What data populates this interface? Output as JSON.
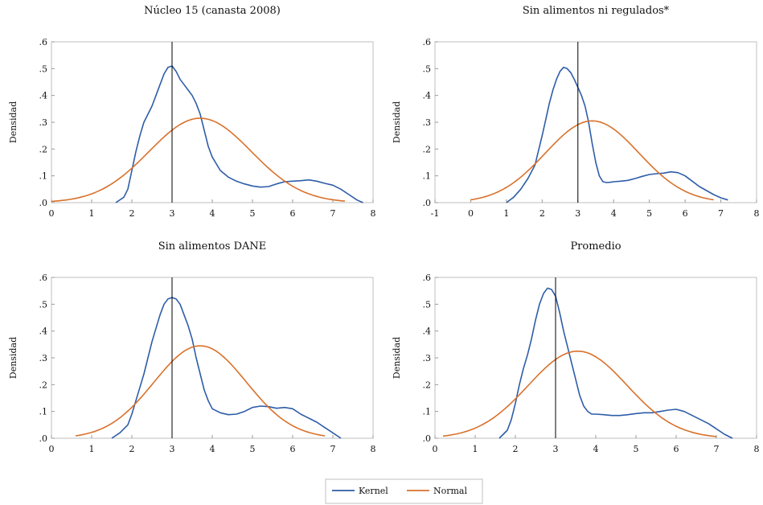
{
  "figure": {
    "legend": {
      "placement": "bottom-center",
      "entries": [
        {
          "label": "Kernel",
          "color": "#2E5DA8"
        },
        {
          "label": "Normal",
          "color": "#D9712B"
        }
      ]
    }
  },
  "chart_data": [
    {
      "type": "line",
      "title": "Núcleo 15 (canasta 2008)",
      "xlabel": "",
      "ylabel": "Densidad",
      "xlim": [
        0,
        8
      ],
      "ylim": [
        0,
        0.6
      ],
      "xticks": [
        0,
        1,
        2,
        3,
        4,
        5,
        6,
        7,
        8
      ],
      "xtick_labels": [
        "0",
        "1",
        "2",
        "3",
        "4",
        "5",
        "6",
        "7",
        "8"
      ],
      "yticks": [
        0,
        0.1,
        0.2,
        0.3,
        0.4,
        0.5,
        0.6
      ],
      "ytick_labels": [
        ".0",
        ".1",
        ".2",
        ".3",
        ".4",
        ".5",
        ".6"
      ],
      "vline": 3,
      "grid": false,
      "series": [
        {
          "name": "Kernel",
          "color": "#2E5DA8",
          "x": [
            1.6,
            1.8,
            1.9,
            2.0,
            2.1,
            2.2,
            2.3,
            2.4,
            2.5,
            2.6,
            2.7,
            2.8,
            2.9,
            3.0,
            3.1,
            3.2,
            3.3,
            3.4,
            3.5,
            3.6,
            3.7,
            3.8,
            3.9,
            4.0,
            4.2,
            4.4,
            4.6,
            4.8,
            5.0,
            5.2,
            5.4,
            5.6,
            5.8,
            6.0,
            6.2,
            6.4,
            6.6,
            6.8,
            7.0,
            7.2,
            7.4,
            7.6,
            7.75
          ],
          "y": [
            0.0,
            0.02,
            0.05,
            0.12,
            0.19,
            0.25,
            0.3,
            0.33,
            0.36,
            0.4,
            0.44,
            0.48,
            0.505,
            0.51,
            0.49,
            0.46,
            0.44,
            0.42,
            0.4,
            0.37,
            0.33,
            0.27,
            0.21,
            0.17,
            0.12,
            0.095,
            0.08,
            0.07,
            0.062,
            0.058,
            0.06,
            0.07,
            0.078,
            0.08,
            0.082,
            0.085,
            0.08,
            0.072,
            0.065,
            0.05,
            0.03,
            0.01,
            0.0
          ]
        },
        {
          "name": "Normal",
          "color": "#D9712B",
          "mean": 3.7,
          "sd": 1.27,
          "x_range": [
            0.0,
            7.3
          ],
          "peak": 0.315
        }
      ]
    },
    {
      "type": "line",
      "title": "Sin alimentos ni regulados*",
      "xlabel": "",
      "ylabel": "Densidad",
      "xlim": [
        -1,
        8
      ],
      "ylim": [
        0,
        0.6
      ],
      "xticks": [
        -1,
        0,
        1,
        2,
        3,
        4,
        5,
        6,
        7,
        8
      ],
      "xtick_labels": [
        "-1",
        "0",
        "1",
        "2",
        "3",
        "4",
        "5",
        "6",
        "7",
        "8"
      ],
      "yticks": [
        0,
        0.1,
        0.2,
        0.3,
        0.4,
        0.5,
        0.6
      ],
      "ytick_labels": [
        ".0",
        ".1",
        ".2",
        ".3",
        ".4",
        ".5",
        ".6"
      ],
      "vline": 3,
      "grid": false,
      "series": [
        {
          "name": "Kernel",
          "color": "#2E5DA8",
          "x": [
            1.0,
            1.2,
            1.4,
            1.6,
            1.8,
            2.0,
            2.1,
            2.2,
            2.3,
            2.4,
            2.5,
            2.6,
            2.7,
            2.8,
            2.9,
            3.0,
            3.1,
            3.2,
            3.3,
            3.4,
            3.5,
            3.6,
            3.7,
            3.8,
            3.9,
            4.0,
            4.2,
            4.4,
            4.6,
            4.8,
            5.0,
            5.2,
            5.4,
            5.6,
            5.8,
            6.0,
            6.2,
            6.4,
            6.6,
            6.8,
            7.0,
            7.2
          ],
          "y": [
            0.0,
            0.02,
            0.05,
            0.09,
            0.14,
            0.25,
            0.31,
            0.37,
            0.42,
            0.46,
            0.49,
            0.505,
            0.5,
            0.485,
            0.46,
            0.43,
            0.4,
            0.36,
            0.3,
            0.22,
            0.15,
            0.1,
            0.078,
            0.075,
            0.076,
            0.078,
            0.08,
            0.083,
            0.09,
            0.098,
            0.105,
            0.108,
            0.11,
            0.115,
            0.112,
            0.1,
            0.08,
            0.06,
            0.045,
            0.03,
            0.018,
            0.01
          ]
        },
        {
          "name": "Normal",
          "color": "#D9712B",
          "mean": 3.4,
          "sd": 1.31,
          "x_range": [
            0.0,
            6.8
          ],
          "peak": 0.305
        }
      ]
    },
    {
      "type": "line",
      "title": "Sin alimentos DANE",
      "xlabel": "",
      "ylabel": "Densidad",
      "xlim": [
        0,
        8
      ],
      "ylim": [
        0,
        0.6
      ],
      "xticks": [
        0,
        1,
        2,
        3,
        4,
        5,
        6,
        7,
        8
      ],
      "xtick_labels": [
        "0",
        "1",
        "2",
        "3",
        "4",
        "5",
        "6",
        "7",
        "8"
      ],
      "yticks": [
        0,
        0.1,
        0.2,
        0.3,
        0.4,
        0.5,
        0.6
      ],
      "ytick_labels": [
        ".0",
        ".1",
        ".2",
        ".3",
        ".4",
        ".5",
        ".6"
      ],
      "vline": 3,
      "grid": false,
      "series": [
        {
          "name": "Kernel",
          "color": "#2E5DA8",
          "x": [
            1.5,
            1.7,
            1.9,
            2.0,
            2.1,
            2.2,
            2.3,
            2.4,
            2.5,
            2.6,
            2.7,
            2.8,
            2.9,
            3.0,
            3.1,
            3.2,
            3.3,
            3.4,
            3.5,
            3.6,
            3.7,
            3.8,
            3.9,
            4.0,
            4.2,
            4.4,
            4.6,
            4.8,
            5.0,
            5.2,
            5.4,
            5.6,
            5.8,
            6.0,
            6.2,
            6.4,
            6.6,
            6.8,
            7.0,
            7.2
          ],
          "y": [
            0.0,
            0.02,
            0.05,
            0.09,
            0.14,
            0.19,
            0.24,
            0.3,
            0.36,
            0.41,
            0.46,
            0.5,
            0.52,
            0.525,
            0.52,
            0.5,
            0.46,
            0.42,
            0.37,
            0.3,
            0.24,
            0.18,
            0.14,
            0.11,
            0.095,
            0.088,
            0.09,
            0.1,
            0.115,
            0.12,
            0.118,
            0.112,
            0.115,
            0.11,
            0.09,
            0.075,
            0.06,
            0.04,
            0.02,
            0.0
          ]
        },
        {
          "name": "Normal",
          "color": "#D9712B",
          "mean": 3.7,
          "sd": 1.15,
          "x_range": [
            0.6,
            6.8
          ],
          "peak": 0.345
        }
      ]
    },
    {
      "type": "line",
      "title": "Promedio",
      "xlabel": "",
      "ylabel": "Densidad",
      "xlim": [
        0,
        8
      ],
      "ylim": [
        0,
        0.6
      ],
      "xticks": [
        0,
        1,
        2,
        3,
        4,
        5,
        6,
        7,
        8
      ],
      "xtick_labels": [
        "0",
        "1",
        "2",
        "3",
        "4",
        "5",
        "6",
        "7",
        "8"
      ],
      "yticks": [
        0,
        0.1,
        0.2,
        0.3,
        0.4,
        0.5,
        0.6
      ],
      "ytick_labels": [
        ".0",
        ".1",
        ".2",
        ".3",
        ".4",
        ".5",
        ".6"
      ],
      "vline": 3,
      "grid": false,
      "series": [
        {
          "name": "Kernel",
          "color": "#2E5DA8",
          "x": [
            1.6,
            1.8,
            1.9,
            2.0,
            2.1,
            2.2,
            2.3,
            2.4,
            2.5,
            2.6,
            2.7,
            2.8,
            2.9,
            3.0,
            3.1,
            3.2,
            3.3,
            3.4,
            3.5,
            3.6,
            3.7,
            3.8,
            3.9,
            4.0,
            4.2,
            4.4,
            4.6,
            4.8,
            5.0,
            5.2,
            5.4,
            5.6,
            5.8,
            6.0,
            6.2,
            6.4,
            6.6,
            6.8,
            7.0,
            7.2,
            7.4
          ],
          "y": [
            0.0,
            0.03,
            0.07,
            0.13,
            0.2,
            0.26,
            0.31,
            0.37,
            0.44,
            0.5,
            0.54,
            0.56,
            0.555,
            0.53,
            0.47,
            0.4,
            0.34,
            0.28,
            0.22,
            0.16,
            0.12,
            0.1,
            0.09,
            0.09,
            0.088,
            0.085,
            0.085,
            0.088,
            0.092,
            0.095,
            0.095,
            0.1,
            0.105,
            0.108,
            0.1,
            0.085,
            0.07,
            0.055,
            0.035,
            0.015,
            0.0
          ]
        },
        {
          "name": "Normal",
          "color": "#D9712B",
          "mean": 3.55,
          "sd": 1.23,
          "x_range": [
            0.2,
            7.0
          ],
          "peak": 0.325
        }
      ]
    }
  ]
}
